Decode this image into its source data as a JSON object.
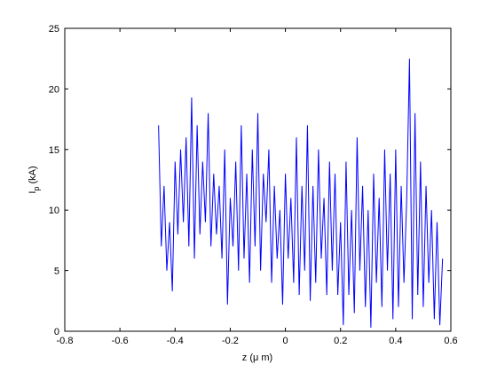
{
  "chart_data": {
    "type": "line",
    "xlabel": "z (μ m)",
    "ylabel": {
      "main": "I",
      "sub": "p",
      "rest": " (kA)"
    },
    "xlim": [
      -0.8,
      0.6
    ],
    "xticks": [
      -0.8,
      -0.6,
      -0.4,
      -0.2,
      0,
      0.2,
      0.4,
      0.6
    ],
    "ylim": [
      0,
      25
    ],
    "yticks": [
      0,
      5,
      10,
      15,
      20,
      25
    ],
    "grid": false,
    "x": [
      -0.46,
      -0.45,
      -0.44,
      -0.43,
      -0.42,
      -0.41,
      -0.4,
      -0.39,
      -0.38,
      -0.37,
      -0.36,
      -0.35,
      -0.34,
      -0.33,
      -0.32,
      -0.31,
      -0.3,
      -0.29,
      -0.28,
      -0.27,
      -0.26,
      -0.25,
      -0.24,
      -0.23,
      -0.22,
      -0.21,
      -0.2,
      -0.19,
      -0.18,
      -0.17,
      -0.16,
      -0.15,
      -0.14,
      -0.13,
      -0.12,
      -0.11,
      -0.1,
      -0.09,
      -0.08,
      -0.07,
      -0.06,
      -0.05,
      -0.04,
      -0.03,
      -0.02,
      -0.01,
      0.0,
      0.01,
      0.02,
      0.03,
      0.04,
      0.05,
      0.06,
      0.07,
      0.08,
      0.09,
      0.1,
      0.11,
      0.12,
      0.13,
      0.14,
      0.15,
      0.16,
      0.17,
      0.18,
      0.19,
      0.2,
      0.21,
      0.22,
      0.23,
      0.24,
      0.25,
      0.26,
      0.27,
      0.28,
      0.29,
      0.3,
      0.31,
      0.32,
      0.33,
      0.34,
      0.35,
      0.36,
      0.37,
      0.38,
      0.39,
      0.4,
      0.41,
      0.42,
      0.43,
      0.44,
      0.45,
      0.46,
      0.47,
      0.48,
      0.49,
      0.5,
      0.51,
      0.52,
      0.53,
      0.54,
      0.55,
      0.56,
      0.57
    ],
    "series": [
      {
        "color": "#0000ff",
        "values": [
          17,
          7,
          12,
          5,
          9,
          3.3,
          14,
          8,
          15,
          9,
          16,
          7,
          19.3,
          6,
          17,
          8,
          14,
          9,
          18,
          7,
          13,
          8,
          12,
          6,
          15,
          2.2,
          11,
          7,
          14,
          5,
          17,
          6,
          13,
          4,
          15,
          7,
          18,
          5,
          13,
          9,
          15,
          4,
          12,
          6,
          10,
          2.2,
          13,
          6,
          11,
          4,
          16,
          3,
          12,
          5,
          17,
          2.5,
          12,
          4,
          15,
          6,
          11,
          3,
          14,
          5,
          13,
          3,
          9,
          0.5,
          14,
          3,
          10,
          1.5,
          16,
          5,
          12,
          2,
          10,
          0.3,
          13,
          4,
          11,
          2,
          15,
          5,
          13,
          1,
          15,
          2,
          12,
          4,
          11,
          22.5,
          1,
          18,
          3,
          14,
          2,
          12,
          4,
          10,
          1,
          9,
          0.5,
          6
        ]
      }
    ]
  }
}
